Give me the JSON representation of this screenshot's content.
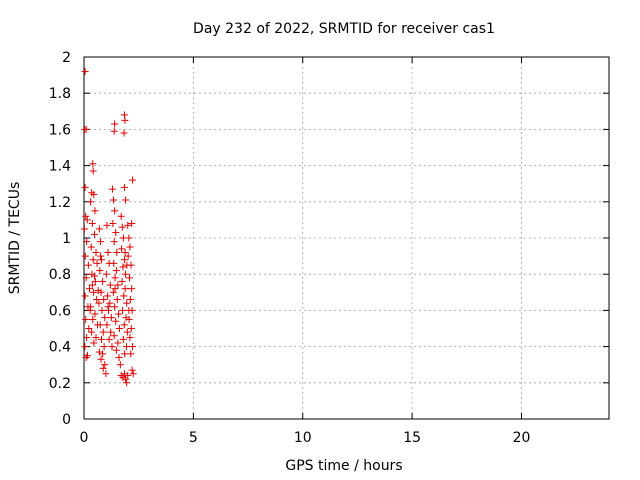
{
  "chart_data": {
    "type": "scatter",
    "title": "Day 232 of 2022, SRMTID for receiver cas1",
    "xlabel": "GPS time / hours",
    "ylabel": "SRMTID / TECUs",
    "xlim": [
      0,
      24
    ],
    "ylim": [
      0,
      2
    ],
    "xticks": [
      0,
      5,
      10,
      15,
      20
    ],
    "xtick_labels": [
      "0",
      "5",
      "10",
      "15",
      "20"
    ],
    "yticks": [
      0,
      0.2,
      0.4,
      0.6,
      0.8,
      1,
      1.2,
      1.4,
      1.6,
      1.8,
      2
    ],
    "ytick_labels": [
      "0",
      "0.2",
      "0.4",
      "0.6",
      "0.8",
      "1",
      "1.2",
      "1.4",
      "1.6",
      "1.8",
      "2"
    ],
    "grid": true,
    "marker": "+",
    "color": "#e00000",
    "series": [
      {
        "name": "cas1",
        "points": [
          [
            0.05,
            1.92
          ],
          [
            0.03,
            1.6
          ],
          [
            0.1,
            1.6
          ],
          [
            0.05,
            1.28
          ],
          [
            0.08,
            1.12
          ],
          [
            0.15,
            1.1
          ],
          [
            0.02,
            1.05
          ],
          [
            0.12,
            0.98
          ],
          [
            0.06,
            0.9
          ],
          [
            0.2,
            0.85
          ],
          [
            0.1,
            0.78
          ],
          [
            0.25,
            0.72
          ],
          [
            0.05,
            0.68
          ],
          [
            0.18,
            0.62
          ],
          [
            0.08,
            0.55
          ],
          [
            0.22,
            0.5
          ],
          [
            0.12,
            0.45
          ],
          [
            0.04,
            0.4
          ],
          [
            0.16,
            0.35
          ],
          [
            0.1,
            0.34
          ],
          [
            0.4,
            1.41
          ],
          [
            0.42,
            1.37
          ],
          [
            0.35,
            1.25
          ],
          [
            0.45,
            1.24
          ],
          [
            0.3,
            1.2
          ],
          [
            0.5,
            1.15
          ],
          [
            0.38,
            1.08
          ],
          [
            0.48,
            1.02
          ],
          [
            0.33,
            0.95
          ],
          [
            0.55,
            0.92
          ],
          [
            0.42,
            0.88
          ],
          [
            0.6,
            0.86
          ],
          [
            0.36,
            0.8
          ],
          [
            0.52,
            0.76
          ],
          [
            0.44,
            0.7
          ],
          [
            0.58,
            0.66
          ],
          [
            0.3,
            0.62
          ],
          [
            0.5,
            0.58
          ],
          [
            0.4,
            0.55
          ],
          [
            0.62,
            0.52
          ],
          [
            0.35,
            0.48
          ],
          [
            0.55,
            0.45
          ],
          [
            0.45,
            0.42
          ],
          [
            0.28,
            0.6
          ],
          [
            0.65,
            0.71
          ],
          [
            0.38,
            0.74
          ],
          [
            0.48,
            0.79
          ],
          [
            0.7,
            1.05
          ],
          [
            0.75,
            0.98
          ],
          [
            0.8,
            0.88
          ],
          [
            0.72,
            0.82
          ],
          [
            0.85,
            0.76
          ],
          [
            0.78,
            0.7
          ],
          [
            0.9,
            0.66
          ],
          [
            0.68,
            0.64
          ],
          [
            0.82,
            0.6
          ],
          [
            0.95,
            0.56
          ],
          [
            0.74,
            0.52
          ],
          [
            0.88,
            0.48
          ],
          [
            0.8,
            0.44
          ],
          [
            0.92,
            0.4
          ],
          [
            0.7,
            0.37
          ],
          [
            0.85,
            0.36
          ],
          [
            0.78,
            0.33
          ],
          [
            0.95,
            0.3
          ],
          [
            0.88,
            0.28
          ],
          [
            1.0,
            0.25
          ],
          [
            0.76,
            0.9
          ],
          [
            1.05,
            1.07
          ],
          [
            1.1,
            0.92
          ],
          [
            1.15,
            0.86
          ],
          [
            1.02,
            0.8
          ],
          [
            1.2,
            0.74
          ],
          [
            1.08,
            0.68
          ],
          [
            1.18,
            0.64
          ],
          [
            1.12,
            0.6
          ],
          [
            1.25,
            0.56
          ],
          [
            1.05,
            0.52
          ],
          [
            1.22,
            0.48
          ],
          [
            1.15,
            0.44
          ],
          [
            1.28,
            0.4
          ],
          [
            1.1,
            0.62
          ],
          [
            1.3,
            1.27
          ],
          [
            1.35,
            1.21
          ],
          [
            1.4,
            1.15
          ],
          [
            1.32,
            1.08
          ],
          [
            1.45,
            1.03
          ],
          [
            1.38,
            0.98
          ],
          [
            1.5,
            0.92
          ],
          [
            1.36,
            0.86
          ],
          [
            1.48,
            0.82
          ],
          [
            1.42,
            0.78
          ],
          [
            1.55,
            0.74
          ],
          [
            1.34,
            0.7
          ],
          [
            1.52,
            0.66
          ],
          [
            1.4,
            0.62
          ],
          [
            1.58,
            0.58
          ],
          [
            1.45,
            0.54
          ],
          [
            1.62,
            0.5
          ],
          [
            1.38,
            0.46
          ],
          [
            1.55,
            0.42
          ],
          [
            1.48,
            0.38
          ],
          [
            1.6,
            0.34
          ],
          [
            1.66,
            0.3
          ],
          [
            1.42,
            0.72
          ],
          [
            1.4,
            1.63
          ],
          [
            1.38,
            1.59
          ],
          [
            1.85,
            1.68
          ],
          [
            1.87,
            1.65
          ],
          [
            1.83,
            1.58
          ],
          [
            1.7,
            1.12
          ],
          [
            1.75,
            1.06
          ],
          [
            1.8,
            1.0
          ],
          [
            1.72,
            0.94
          ],
          [
            1.85,
            0.88
          ],
          [
            1.78,
            0.84
          ],
          [
            1.9,
            0.8
          ],
          [
            1.74,
            0.76
          ],
          [
            1.88,
            0.72
          ],
          [
            1.82,
            0.68
          ],
          [
            1.95,
            0.64
          ],
          [
            1.76,
            0.6
          ],
          [
            1.92,
            0.56
          ],
          [
            1.84,
            0.52
          ],
          [
            1.98,
            0.48
          ],
          [
            1.8,
            0.44
          ],
          [
            1.94,
            0.4
          ],
          [
            1.86,
            0.36
          ],
          [
            1.7,
            0.24
          ],
          [
            1.78,
            0.23
          ],
          [
            1.85,
            0.25
          ],
          [
            1.9,
            0.22
          ],
          [
            1.95,
            0.2
          ],
          [
            2.0,
            0.24
          ],
          [
            1.88,
            0.92
          ],
          [
            1.96,
            0.85
          ],
          [
            1.85,
            1.28
          ],
          [
            1.9,
            1.21
          ],
          [
            2.0,
            1.07
          ],
          [
            2.05,
            1.0
          ],
          [
            2.1,
            0.95
          ],
          [
            2.02,
            0.9
          ],
          [
            2.15,
            0.85
          ],
          [
            2.08,
            0.78
          ],
          [
            2.18,
            0.72
          ],
          [
            2.12,
            0.66
          ],
          [
            2.2,
            0.6
          ],
          [
            2.06,
            0.55
          ],
          [
            2.16,
            0.5
          ],
          [
            2.1,
            0.45
          ],
          [
            2.22,
            0.4
          ],
          [
            2.14,
            0.36
          ],
          [
            2.05,
            0.6
          ],
          [
            2.2,
            0.27
          ],
          [
            2.25,
            0.25
          ],
          [
            2.18,
            1.08
          ],
          [
            2.22,
            1.32
          ]
        ]
      }
    ]
  }
}
